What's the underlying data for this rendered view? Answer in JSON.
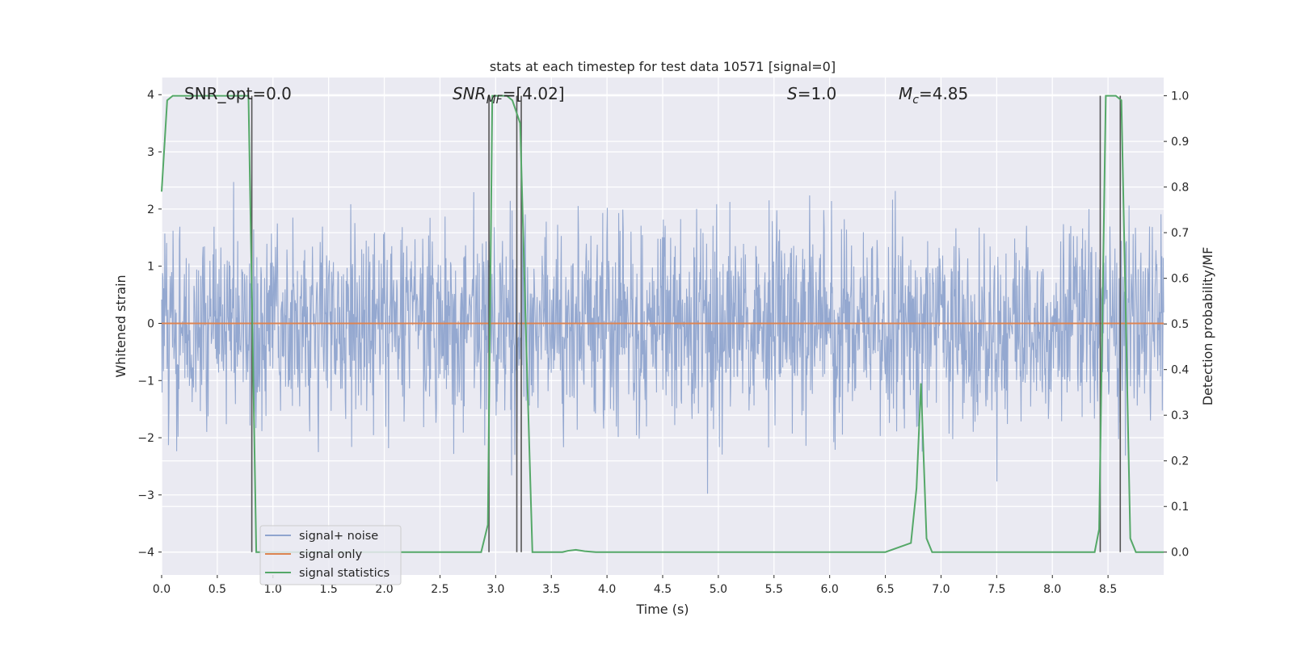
{
  "chart_data": {
    "type": "line",
    "title": "stats at each timestep for test data 10571 [signal=0]",
    "xlabel": "Time (s)",
    "ylabel": "Whitened strain",
    "ylabel_right": "Detection probability/MF",
    "xlim": [
      0.0,
      9.0
    ],
    "ylim": [
      -4.4,
      4.3
    ],
    "ylim_right": [
      -0.05,
      1.04
    ],
    "xticks": [
      "0.0",
      "0.5",
      "1.0",
      "1.5",
      "2.0",
      "2.5",
      "3.0",
      "3.5",
      "4.0",
      "4.5",
      "5.0",
      "5.5",
      "6.0",
      "6.5",
      "7.0",
      "7.5",
      "8.0",
      "8.5"
    ],
    "yticks": [
      "4",
      "3",
      "2",
      "1",
      "0",
      "−1",
      "−2",
      "−3",
      "−4"
    ],
    "yticks_right": [
      "1.0",
      "0.9",
      "0.8",
      "0.7",
      "0.6",
      "0.5",
      "0.4",
      "0.3",
      "0.2",
      "0.1",
      "0.0"
    ],
    "grid": true,
    "legend_position": "lower-left",
    "annotations": {
      "snr_opt": "SNR_opt=0.0",
      "snr_mf_base": "SNR",
      "snr_mf_sub": "MF",
      "snr_mf_value": "=[4.02]",
      "s_base": "S",
      "s_value": "=1.0",
      "mc_base": "M",
      "mc_sub": "c",
      "mc_value": "=4.85"
    },
    "series": [
      {
        "name": "signal+ noise",
        "color": "#8fa4ce",
        "description_range": [
          -4.0,
          4.0
        ],
        "noise_envelope_std": 0.85,
        "n_samples": 2200
      },
      {
        "name": "signal only",
        "color": "#dd8452",
        "x": [
          0.0,
          9.0
        ],
        "y": [
          0.0,
          0.0
        ]
      },
      {
        "name": "signal statistics",
        "color": "#55a868",
        "axis": "right",
        "x": [
          0.0,
          0.05,
          0.1,
          0.2,
          0.3,
          0.4,
          0.5,
          0.6,
          0.7,
          0.78,
          0.85,
          0.92,
          1.0,
          2.0,
          2.87,
          2.93,
          2.97,
          3.0,
          3.05,
          3.1,
          3.15,
          3.22,
          3.27,
          3.33,
          3.6,
          3.65,
          3.72,
          3.8,
          3.9,
          4.0,
          5.5,
          5.8,
          6.5,
          6.73,
          6.78,
          6.82,
          6.87,
          6.92,
          7.0,
          7.5,
          8.0,
          8.38,
          8.42,
          8.48,
          8.52,
          8.57,
          8.62,
          8.7,
          8.75,
          8.85,
          9.0
        ],
        "y": [
          0.79,
          0.99,
          1.0,
          1.0,
          1.0,
          1.0,
          1.0,
          1.0,
          1.0,
          1.0,
          0.0,
          0.0,
          0.0,
          0.0,
          0.0,
          0.06,
          1.0,
          1.0,
          1.0,
          1.0,
          0.99,
          0.94,
          0.5,
          0.0,
          0.0,
          0.003,
          0.005,
          0.002,
          0.0,
          0.0,
          0.0,
          0.0,
          0.0,
          0.02,
          0.14,
          0.37,
          0.03,
          0.0,
          0.0,
          0.0,
          0.0,
          0.0,
          0.05,
          1.0,
          1.0,
          1.0,
          0.99,
          0.03,
          0.0,
          0.0,
          0.0
        ]
      }
    ],
    "vlines": [
      0.81,
      2.94,
      3.19,
      3.23,
      8.43,
      8.61
    ]
  }
}
